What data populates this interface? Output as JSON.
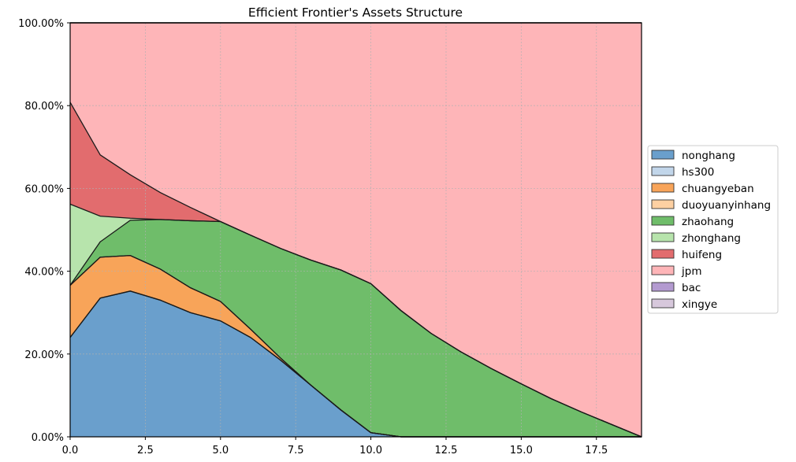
{
  "chart_data": {
    "type": "area",
    "stacked": true,
    "normalized": true,
    "title": "Efficient Frontier's Assets Structure",
    "xlabel": "",
    "ylabel": "",
    "xlim": [
      0,
      19
    ],
    "ylim": [
      0,
      1
    ],
    "x_ticks": [
      "0.0",
      "2.5",
      "5.0",
      "7.5",
      "10.0",
      "12.5",
      "15.0",
      "17.5"
    ],
    "x_tick_values": [
      0,
      2.5,
      5,
      7.5,
      10,
      12.5,
      15,
      17.5
    ],
    "y_ticks": [
      "0.00%",
      "20.00%",
      "40.00%",
      "60.00%",
      "80.00%",
      "100.00%"
    ],
    "y_tick_values": [
      0,
      0.2,
      0.4,
      0.6,
      0.8,
      1.0
    ],
    "grid": true,
    "legend_position": "center-right",
    "x": [
      0,
      1,
      2,
      3,
      4,
      5,
      6,
      7,
      8,
      9,
      10,
      11,
      12,
      13,
      14,
      15,
      16,
      17,
      18,
      19
    ],
    "series": [
      {
        "name": "nonghang",
        "color": "#6a9fcc",
        "values": [
          0.24,
          0.335,
          0.352,
          0.33,
          0.3,
          0.28,
          0.24,
          0.185,
          0.125,
          0.065,
          0.01,
          0,
          0,
          0,
          0,
          0,
          0,
          0,
          0,
          0
        ]
      },
      {
        "name": "hs300",
        "color": "#c2d6ea",
        "values": [
          0,
          0,
          0,
          0,
          0,
          0,
          0,
          0,
          0,
          0,
          0,
          0,
          0,
          0,
          0,
          0,
          0,
          0,
          0,
          0
        ]
      },
      {
        "name": "chuangyeban",
        "color": "#f8a459",
        "values": [
          0.126,
          0.099,
          0.086,
          0.075,
          0.06,
          0.047,
          0.02,
          0.005,
          0,
          0,
          0,
          0,
          0,
          0,
          0,
          0,
          0,
          0,
          0,
          0
        ]
      },
      {
        "name": "duoyuanyinhang",
        "color": "#fdd0a2",
        "values": [
          0,
          0,
          0,
          0,
          0,
          0,
          0,
          0,
          0,
          0,
          0,
          0,
          0,
          0,
          0,
          0,
          0,
          0,
          0,
          0
        ]
      },
      {
        "name": "zhaohang",
        "color": "#6fbd6a",
        "values": [
          0,
          0.037,
          0.085,
          0.12,
          0.162,
          0.193,
          0.227,
          0.265,
          0.302,
          0.338,
          0.36,
          0.305,
          0.25,
          0.205,
          0.165,
          0.128,
          0.092,
          0.06,
          0.03,
          0.0
        ]
      },
      {
        "name": "zhonghang",
        "color": "#b7e4ac",
        "values": [
          0.196,
          0.062,
          0.005,
          0,
          0,
          0,
          0,
          0,
          0,
          0,
          0,
          0,
          0,
          0,
          0,
          0,
          0,
          0,
          0,
          0
        ]
      },
      {
        "name": "huifeng",
        "color": "#e26c6e",
        "values": [
          0.246,
          0.148,
          0.105,
          0.065,
          0.032,
          0,
          0,
          0,
          0,
          0,
          0,
          0,
          0,
          0,
          0,
          0,
          0,
          0,
          0,
          0
        ]
      },
      {
        "name": "jpm",
        "color": "#feb5b8",
        "values": [
          0.192,
          0.319,
          0.367,
          0.41,
          0.446,
          0.48,
          0.513,
          0.545,
          0.573,
          0.597,
          0.63,
          0.695,
          0.75,
          0.795,
          0.835,
          0.872,
          0.908,
          0.94,
          0.97,
          1.0
        ]
      },
      {
        "name": "bac",
        "color": "#b39ad0",
        "values": [
          0,
          0,
          0,
          0,
          0,
          0,
          0,
          0,
          0,
          0,
          0,
          0,
          0,
          0,
          0,
          0,
          0,
          0,
          0,
          0
        ]
      },
      {
        "name": "xingye",
        "color": "#d7c8dc",
        "values": [
          0,
          0,
          0,
          0,
          0,
          0,
          0,
          0,
          0,
          0,
          0,
          0,
          0,
          0,
          0,
          0,
          0,
          0,
          0,
          0
        ]
      }
    ]
  }
}
